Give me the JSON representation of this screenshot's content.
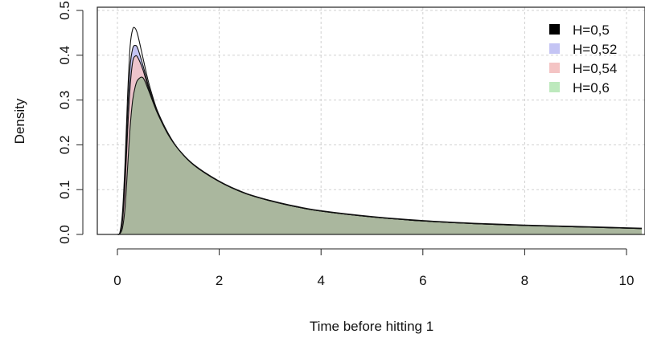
{
  "chart_data": {
    "type": "area",
    "xlabel": "Time before hitting 1",
    "ylabel": "Density",
    "xlim": [
      0,
      10.3
    ],
    "ylim": [
      0,
      0.5
    ],
    "x_ticks": [
      "0",
      "2",
      "4",
      "6",
      "8",
      "10"
    ],
    "y_ticks": [
      "0.0",
      "0.1",
      "0.2",
      "0.3",
      "0.4",
      "0.5"
    ],
    "grid": true,
    "legend_position": "top-right",
    "x": [
      0,
      0.05,
      0.1,
      0.15,
      0.2,
      0.25,
      0.3,
      0.35,
      0.4,
      0.5,
      0.6,
      0.7,
      0.8,
      1.0,
      1.2,
      1.5,
      2.0,
      2.5,
      3.0,
      3.5,
      4.0,
      5.0,
      6.0,
      7.0,
      8.0,
      9.0,
      10.0,
      10.3
    ],
    "series": [
      {
        "name": "H=0,5",
        "fill": "#222222",
        "opacity": 0.0,
        "values": [
          0,
          0.005,
          0.05,
          0.16,
          0.31,
          0.42,
          0.458,
          0.46,
          0.445,
          0.395,
          0.345,
          0.305,
          0.272,
          0.225,
          0.19,
          0.155,
          0.118,
          0.092,
          0.075,
          0.062,
          0.052,
          0.039,
          0.03,
          0.024,
          0.02,
          0.017,
          0.014,
          0.013
        ]
      },
      {
        "name": "H=0,52",
        "fill": "#c4c4f4",
        "opacity": 1.0,
        "values": [
          0,
          0.004,
          0.04,
          0.13,
          0.27,
          0.375,
          0.415,
          0.422,
          0.415,
          0.378,
          0.336,
          0.3,
          0.27,
          0.224,
          0.19,
          0.155,
          0.118,
          0.092,
          0.075,
          0.062,
          0.052,
          0.039,
          0.03,
          0.024,
          0.02,
          0.017,
          0.014,
          0.013
        ]
      },
      {
        "name": "H=0,54",
        "fill": "#f4c4c4",
        "opacity": 0.85,
        "values": [
          0,
          0.003,
          0.03,
          0.11,
          0.23,
          0.33,
          0.385,
          0.398,
          0.395,
          0.368,
          0.33,
          0.296,
          0.268,
          0.223,
          0.19,
          0.155,
          0.118,
          0.092,
          0.075,
          0.062,
          0.052,
          0.039,
          0.03,
          0.024,
          0.02,
          0.017,
          0.014,
          0.013
        ]
      },
      {
        "name": "H=0,6",
        "fill": "#bde9bd",
        "opacity": 0.6,
        "values": [
          0,
          0.002,
          0.015,
          0.06,
          0.15,
          0.24,
          0.3,
          0.33,
          0.345,
          0.35,
          0.325,
          0.295,
          0.267,
          0.222,
          0.19,
          0.156,
          0.119,
          0.093,
          0.076,
          0.063,
          0.053,
          0.04,
          0.031,
          0.025,
          0.021,
          0.018,
          0.015,
          0.014
        ]
      }
    ]
  }
}
